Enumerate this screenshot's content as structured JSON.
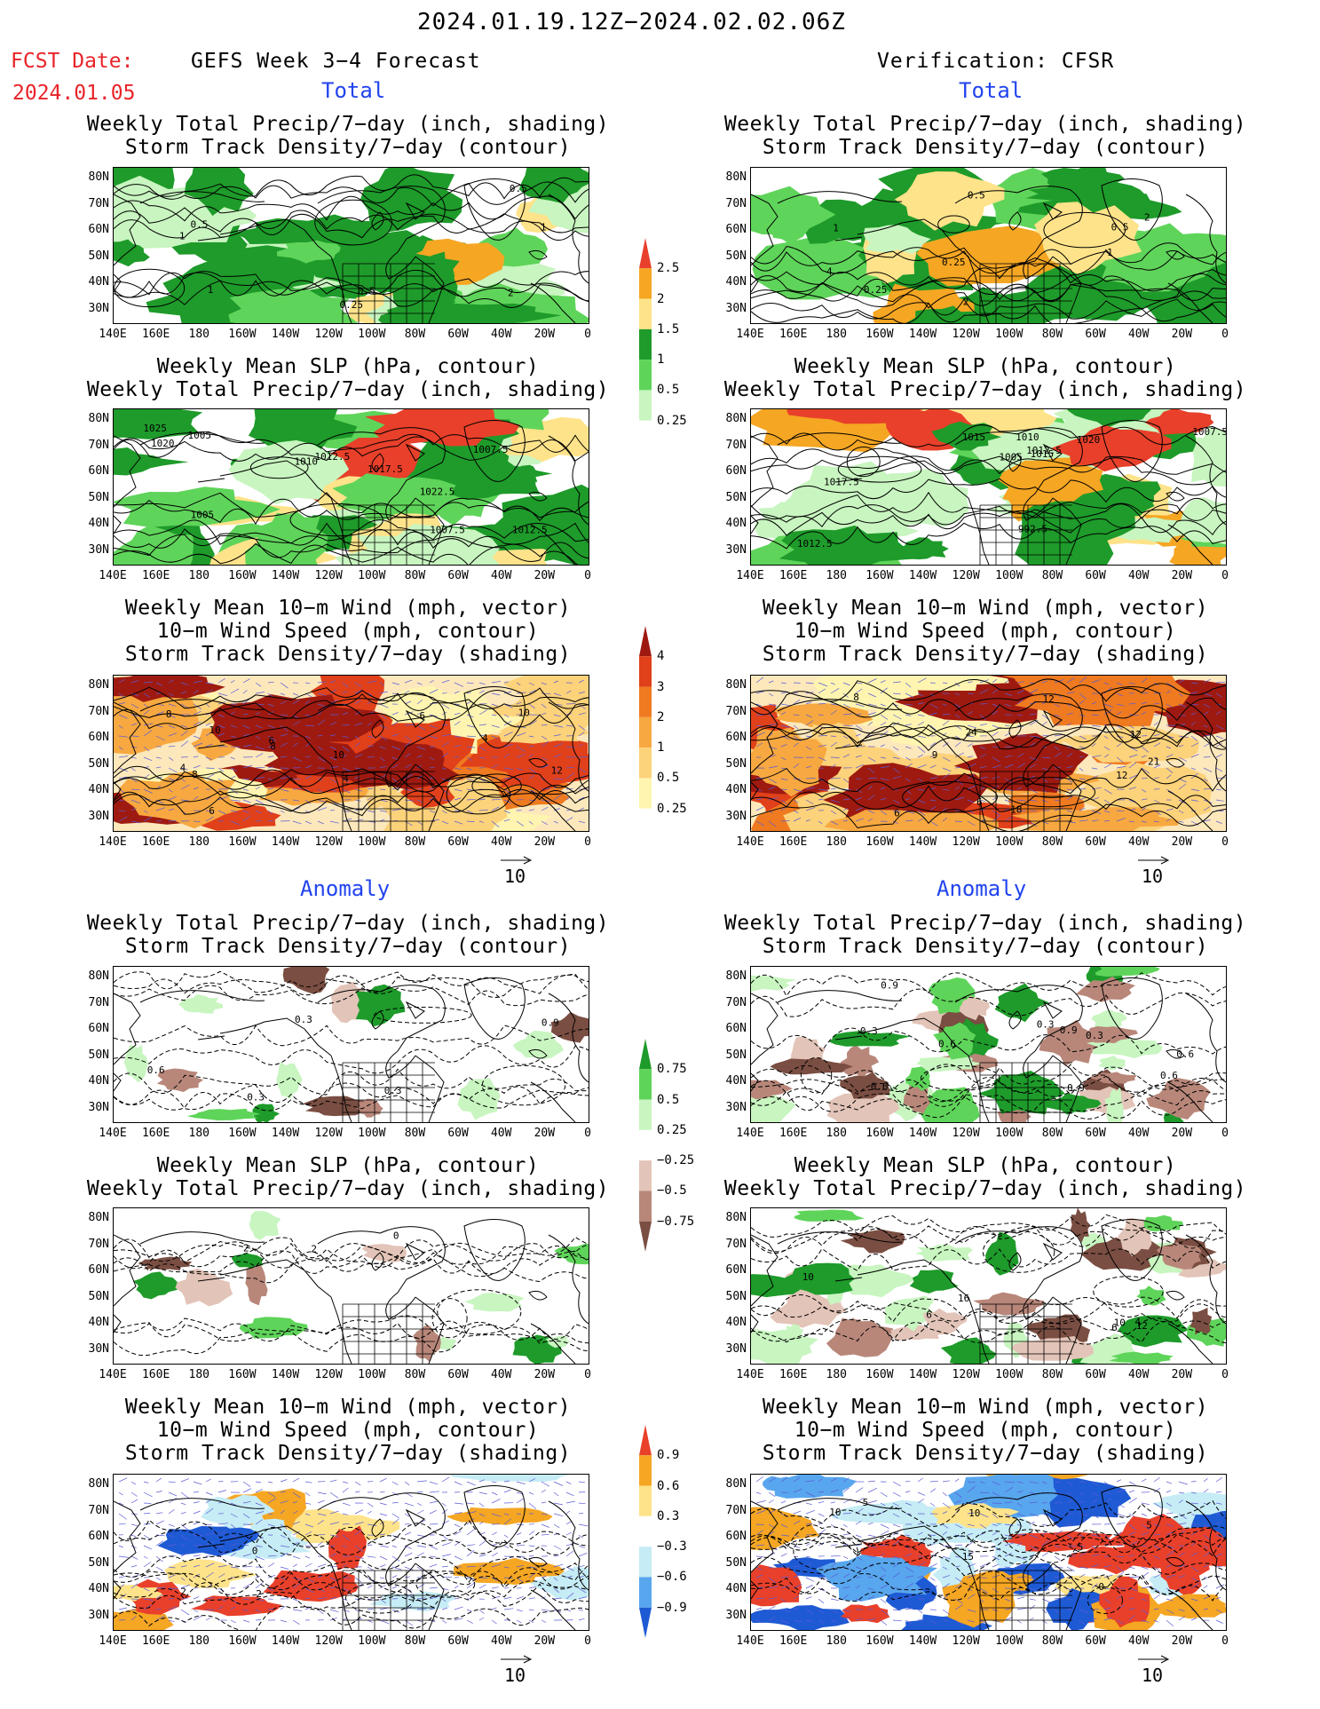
{
  "header": {
    "date_range": "2024.01.19.12Z−2024.02.02.06Z",
    "fcst_label": "FCST Date:",
    "fcst_date": "2024.01.05",
    "left_title": "GEFS Week 3−4 Forecast",
    "right_title": "Verification: CFSR"
  },
  "sections": {
    "total": "Total",
    "anomaly": "Anomaly"
  },
  "panel_titles": {
    "precip_storm": [
      "Weekly Total Precip/7−day (inch, shading)",
      "Storm Track Density/7−day (contour)"
    ],
    "slp_precip": [
      "Weekly Mean SLP (hPa, contour)",
      "Weekly Total Precip/7−day (inch, shading)"
    ],
    "wind_storm": [
      "Weekly Mean 10−m Wind (mph, vector)",
      "10−m Wind Speed (mph, contour)",
      "Storm Track Density/7−day (shading)"
    ]
  },
  "axes": {
    "lat": [
      "80N",
      "70N",
      "60N",
      "50N",
      "40N",
      "30N"
    ],
    "lon": [
      "140E",
      "160E",
      "180",
      "160W",
      "140W",
      "120W",
      "100W",
      "80W",
      "60W",
      "40W",
      "20W",
      "0"
    ]
  },
  "colorbars": {
    "precip_total": [
      "2.5",
      "2",
      "1.5",
      "1",
      "0.5",
      "0.25"
    ],
    "storm_total": [
      "4",
      "3",
      "2",
      "1",
      "0.5",
      "0.25"
    ],
    "precip_anom": [
      "0.75",
      "0.5",
      "0.25",
      "−0.25",
      "−0.5",
      "−0.75"
    ],
    "storm_anom": [
      "0.9",
      "0.6",
      "0.3",
      "−0.3",
      "−0.6",
      "−0.9"
    ]
  },
  "vector_scale": "10",
  "colors": {
    "title_red": "#e8242a",
    "section_blue": "#2244ee",
    "precip": [
      "#c8f5c0",
      "#5fd45a",
      "#1e9b2a",
      "#ffe38a",
      "#f5a623",
      "#e8402a"
    ],
    "storm": [
      "#fff5b0",
      "#fcd27a",
      "#f7a840",
      "#ef7a20",
      "#e0401a",
      "#9e1a10"
    ],
    "precip_anom_pos": [
      "#c8f5c0",
      "#5fd45a",
      "#1e9b2a"
    ],
    "precip_anom_neg": [
      "#e3c4b8",
      "#b8877a",
      "#7a4e42"
    ],
    "storm_anom_pos": [
      "#ffe38a",
      "#f5a623",
      "#e8402a"
    ],
    "storm_anom_neg": [
      "#c6ecf5",
      "#58a6ee",
      "#1e5ad4"
    ]
  },
  "contour_labels": {
    "p1": [
      "0.5",
      "0.5",
      "1",
      "2",
      "1",
      "0.25",
      "0.5",
      "1"
    ],
    "p2": [
      "0.25",
      "0.5",
      "1",
      "2",
      "0.25",
      "0.5",
      "4",
      "2",
      "1"
    ],
    "p3": [
      "1012.5",
      "1020",
      "1012.5",
      "1025",
      "1007.5",
      "1005",
      "1005",
      "1007.5",
      "1010",
      "1017.5",
      "1022.5"
    ],
    "p4": [
      "992.5",
      "1012.5",
      "1012.5",
      "1010",
      "1007.5",
      "1015",
      "1017.5",
      "1020",
      "1015",
      "1005"
    ],
    "p5": [
      "6",
      "4",
      "8",
      "6",
      "4",
      "4",
      "10",
      "8",
      "8",
      "12",
      "10",
      "6",
      "10"
    ],
    "p6": [
      "6",
      "12",
      "8",
      "6",
      "12",
      "18",
      "21",
      "24",
      "9",
      "12"
    ],
    "p7": [
      "0.3",
      "0.3",
      "0.6",
      "0.9",
      "0.3"
    ],
    "p8": [
      "0.9",
      "0.6",
      "0.9",
      "0.3",
      "0.6",
      "0.3",
      "0.6",
      "0.9",
      "0.6",
      "0.3"
    ],
    "p9": [
      "2",
      "0",
      "2"
    ],
    "p10": [
      "16",
      "6",
      "12",
      "10",
      "6",
      "4",
      "10"
    ],
    "p11": [
      "2",
      "0",
      "2"
    ],
    "p12": [
      "0",
      "5",
      "10",
      "15",
      "5",
      "10",
      "5"
    ]
  }
}
